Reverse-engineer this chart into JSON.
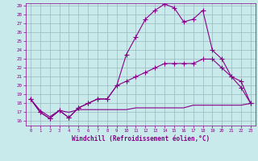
{
  "x": [
    0,
    1,
    2,
    3,
    4,
    5,
    6,
    7,
    8,
    9,
    10,
    11,
    12,
    13,
    14,
    15,
    16,
    17,
    18,
    19,
    20,
    21,
    22,
    23
  ],
  "line1": [
    18.5,
    17.0,
    16.3,
    17.2,
    16.4,
    17.5,
    18.0,
    18.5,
    18.5,
    20.0,
    23.5,
    25.5,
    27.5,
    28.5,
    29.2,
    28.8,
    27.2,
    27.5,
    28.5,
    24.0,
    23.0,
    21.0,
    19.8,
    18.0
  ],
  "line2": [
    18.5,
    17.0,
    16.3,
    17.2,
    16.4,
    17.5,
    18.0,
    18.5,
    18.5,
    20.0,
    20.5,
    21.0,
    21.5,
    22.0,
    22.5,
    22.5,
    22.5,
    22.5,
    23.0,
    23.0,
    22.0,
    21.0,
    20.5,
    18.0
  ],
  "line3": [
    18.5,
    17.2,
    16.5,
    17.2,
    17.0,
    17.3,
    17.3,
    17.3,
    17.3,
    17.3,
    17.3,
    17.5,
    17.5,
    17.5,
    17.5,
    17.5,
    17.5,
    17.8,
    17.8,
    17.8,
    17.8,
    17.8,
    17.8,
    18.0
  ],
  "line1_marker": true,
  "line2_marker": true,
  "line3_marker": false,
  "color": "#880088",
  "background_plot": "#c8eaea",
  "background_fig": "#c8eaea",
  "xlabel": "Windchill (Refroidissement éolien,°C)",
  "ylim": [
    16,
    29
  ],
  "xlim": [
    -0.5,
    23.5
  ],
  "yticks": [
    16,
    17,
    18,
    19,
    20,
    21,
    22,
    23,
    24,
    25,
    26,
    27,
    28,
    29
  ],
  "xticks": [
    0,
    1,
    2,
    3,
    4,
    5,
    6,
    7,
    8,
    9,
    10,
    11,
    12,
    13,
    14,
    15,
    16,
    17,
    18,
    19,
    20,
    21,
    22,
    23
  ],
  "marker": "+",
  "linewidth": 0.8,
  "markersize": 4,
  "grid_color": "#9ab8c0",
  "tick_color": "#880088",
  "label_color": "#880088"
}
